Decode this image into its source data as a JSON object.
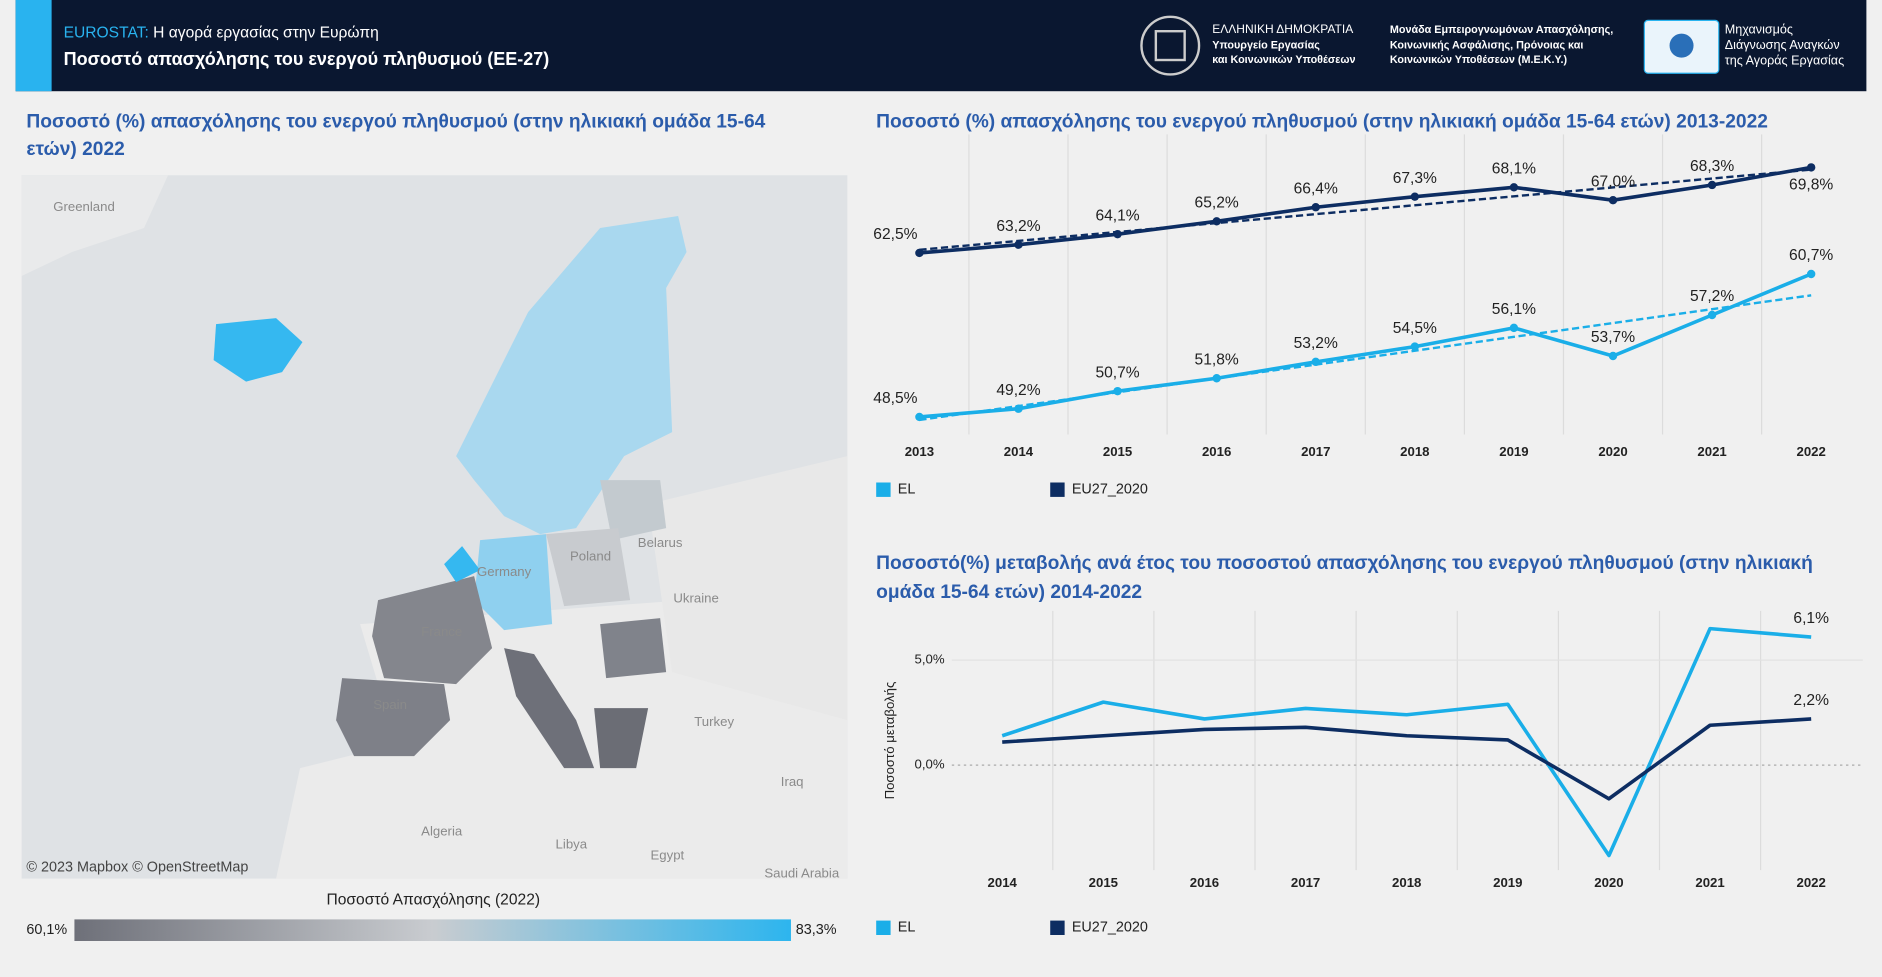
{
  "header": {
    "source": "EUROSTAT:",
    "subtitle": "Η αγορά εργασίας στην Ευρώπη",
    "title": "Ποσοστό απασχόλησης του ενεργού πληθυσμού (ΕΕ-27)",
    "logo1": [
      "ΕΛΛΗΝΙΚΗ ΔΗΜΟΚΡΑΤΙΑ",
      "Υπουργείο Εργασίας",
      "και Κοινωνικών Υποθέσεων"
    ],
    "logo2": [
      "Μονάδα Εμπειρογνωμόνων Απασχόλησης,",
      "Κοινωνικής Ασφάλισης, Πρόνοιας και",
      "Κοινωνικών Υποθέσεων (Μ.Ε.Κ.Υ.)"
    ],
    "logo3": [
      "Μηχανισμός",
      "Διάγνωσης Αναγκών",
      "της Αγοράς Εργασίας"
    ]
  },
  "map": {
    "title": [
      "Ποσοστό (%) απασχόλησης του ενεργού πληθυσμού (στην ηλικιακή ομάδα 15-64",
      "ετών) 2022"
    ],
    "labels": [
      "Greenland",
      "Belarus",
      "Ukraine",
      "Poland",
      "Germany",
      "France",
      "Spain",
      "Turkey",
      "Algeria",
      "Libya",
      "Egypt",
      "Iraq",
      "Saudi Arabia"
    ],
    "credit": "© 2023 Mapbox © OpenStreetMap",
    "legend": {
      "title": "Ποσοστό Απασχόλησης (2022)",
      "min": {
        "value": 60.1,
        "label": "60,1%"
      },
      "max": {
        "value": 83.3,
        "label": "83,3%"
      },
      "colors": [
        "#6e7079",
        "#c9ccd0",
        "#2db5ee"
      ]
    }
  },
  "chart_data": [
    {
      "type": "line",
      "title": "Ποσοστό (%) απασχόλησης του ενεργού πληθυσμού (στην ηλικιακή ομάδα 15-64 ετών) 2013-2022",
      "categories": [
        "2013",
        "2014",
        "2015",
        "2016",
        "2017",
        "2018",
        "2019",
        "2020",
        "2021",
        "2022"
      ],
      "series": [
        {
          "name": "EL",
          "color": "#1aaee8",
          "values": [
            48.5,
            49.2,
            50.7,
            51.8,
            53.2,
            54.5,
            56.1,
            53.7,
            57.2,
            60.7
          ],
          "value_labels": [
            "48,5%",
            "49,2%",
            "50,7%",
            "51,8%",
            "53,2%",
            "54,5%",
            "56,1%",
            "53,7%",
            "57,2%",
            "60,7%"
          ]
        },
        {
          "name": "EU27_2020",
          "color": "#0d2d62",
          "values": [
            62.5,
            63.2,
            64.1,
            65.2,
            66.4,
            67.3,
            68.1,
            67.0,
            68.3,
            69.8
          ],
          "value_labels": [
            "62,5%",
            "63,2%",
            "64,1%",
            "65,2%",
            "66,4%",
            "67,3%",
            "68,1%",
            "67,0%",
            "68,3%",
            "69,8%"
          ]
        }
      ],
      "ylim": [
        47,
        72
      ],
      "trendline": true,
      "markers": true
    },
    {
      "type": "line",
      "title": [
        "Ποσοστό(%) μεταβολής ανά έτος του ποσοστού απασχόλησης του ενεργού πληθυσμού (στην ηλικιακή",
        "ομάδα 15-64 ετών) 2014-2022"
      ],
      "y_label": "Ποσοστό μεταβολής",
      "categories": [
        "2014",
        "2015",
        "2016",
        "2017",
        "2018",
        "2019",
        "2020",
        "2021",
        "2022"
      ],
      "series": [
        {
          "name": "EL",
          "color": "#1aaee8",
          "values": [
            1.4,
            3.0,
            2.2,
            2.7,
            2.4,
            2.9,
            -4.3,
            6.5,
            6.1
          ],
          "value_labels": [
            null,
            null,
            null,
            null,
            null,
            null,
            null,
            null,
            "6,1%"
          ]
        },
        {
          "name": "EU27_2020",
          "color": "#0d2d62",
          "values": [
            1.1,
            1.4,
            1.7,
            1.8,
            1.4,
            1.2,
            -1.6,
            1.9,
            2.2
          ],
          "value_labels": [
            null,
            null,
            null,
            null,
            null,
            null,
            null,
            null,
            "2,2%"
          ]
        }
      ],
      "ylim": [
        -5,
        7
      ],
      "yticks": [
        {
          "value": 0,
          "label": "0,0%"
        },
        {
          "value": 5,
          "label": "5,0%"
        }
      ],
      "trendline": false,
      "markers": false
    }
  ]
}
